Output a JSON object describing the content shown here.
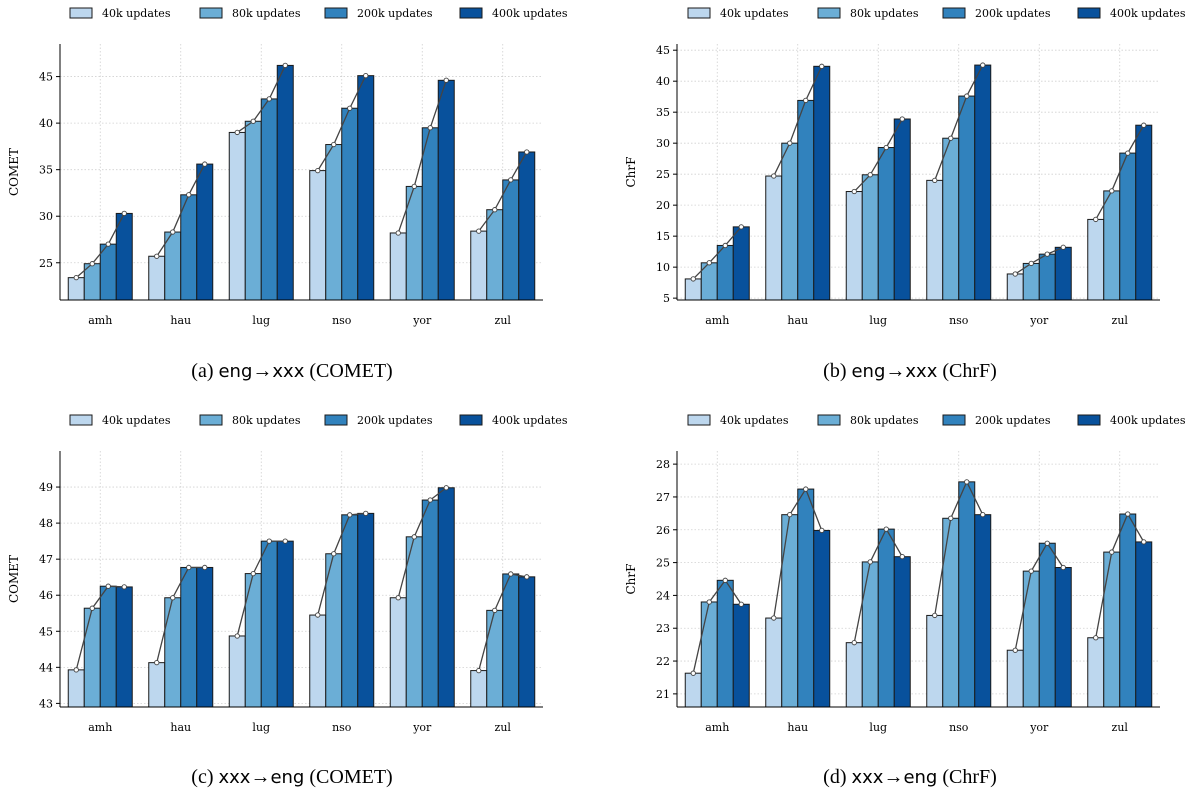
{
  "colors": [
    "#bdd7ee",
    "#6baed6",
    "#3182bd",
    "#08519c"
  ],
  "legend": [
    "40k updates",
    "80k updates",
    "200k updates",
    "400k updates"
  ],
  "chart_data": [
    {
      "type": "bar",
      "caption": "(a) eng→xxx (COMET)",
      "caption_parts": {
        "label": "(a)",
        "src": "eng",
        "arrow": "→",
        "tgt": "xxx",
        "metric": "(COMET)"
      },
      "ylabel": "COMET",
      "categories": [
        "amh",
        "hau",
        "lug",
        "nso",
        "yor",
        "zul"
      ],
      "ylim": [
        21,
        48.5
      ],
      "yticks": [
        25,
        30,
        35,
        40,
        45
      ],
      "series": [
        {
          "name": "40k updates",
          "values": [
            23.4,
            25.7,
            39.0,
            34.9,
            28.2,
            28.4
          ]
        },
        {
          "name": "80k updates",
          "values": [
            24.9,
            28.3,
            40.2,
            37.7,
            33.2,
            30.7
          ]
        },
        {
          "name": "200k updates",
          "values": [
            27.0,
            32.3,
            42.6,
            41.6,
            39.5,
            33.9
          ]
        },
        {
          "name": "400k updates",
          "values": [
            30.3,
            35.6,
            46.2,
            45.1,
            44.6,
            36.9
          ]
        }
      ]
    },
    {
      "type": "bar",
      "caption": "(b) eng→xxx (ChrF)",
      "caption_parts": {
        "label": "(b)",
        "src": "eng",
        "arrow": "→",
        "tgt": "xxx",
        "metric": "(ChrF)"
      },
      "ylabel": "ChrF",
      "categories": [
        "amh",
        "hau",
        "lug",
        "nso",
        "yor",
        "zul"
      ],
      "ylim": [
        4.7,
        46
      ],
      "yticks": [
        5,
        10,
        15,
        20,
        25,
        30,
        35,
        40,
        45
      ],
      "series": [
        {
          "name": "40k updates",
          "values": [
            8.1,
            24.7,
            22.2,
            24.0,
            8.9,
            17.7
          ]
        },
        {
          "name": "80k updates",
          "values": [
            10.7,
            30.0,
            24.9,
            30.8,
            10.6,
            22.3
          ]
        },
        {
          "name": "200k updates",
          "values": [
            13.5,
            36.9,
            29.3,
            37.6,
            12.1,
            28.4
          ]
        },
        {
          "name": "400k updates",
          "values": [
            16.5,
            42.4,
            33.9,
            42.6,
            13.2,
            32.9
          ]
        }
      ]
    },
    {
      "type": "bar",
      "caption": "(c) xxx→eng (COMET)",
      "caption_parts": {
        "label": "(c)",
        "src": "xxx",
        "arrow": "→",
        "tgt": "eng",
        "metric": "(COMET)"
      },
      "ylabel": "COMET",
      "categories": [
        "amh",
        "hau",
        "lug",
        "nso",
        "yor",
        "zul"
      ],
      "ylim": [
        42.9,
        50
      ],
      "yticks": [
        43,
        44,
        45,
        46,
        47,
        48,
        49
      ],
      "series": [
        {
          "name": "40k updates",
          "values": [
            43.93,
            44.13,
            44.87,
            45.45,
            45.93,
            43.91
          ]
        },
        {
          "name": "80k updates",
          "values": [
            45.64,
            45.93,
            46.6,
            47.15,
            47.62,
            45.58
          ]
        },
        {
          "name": "200k updates",
          "values": [
            46.25,
            46.77,
            47.5,
            48.23,
            48.64,
            46.59
          ]
        },
        {
          "name": "400k updates",
          "values": [
            46.23,
            46.77,
            47.5,
            48.27,
            48.98,
            46.51
          ]
        }
      ]
    },
    {
      "type": "bar",
      "caption": "(d) xxx→eng (ChrF)",
      "caption_parts": {
        "label": "(d)",
        "src": "xxx",
        "arrow": "→",
        "tgt": "eng",
        "metric": "(ChrF)"
      },
      "ylabel": "ChrF",
      "categories": [
        "amh",
        "hau",
        "lug",
        "nso",
        "yor",
        "zul"
      ],
      "ylim": [
        20.6,
        28.4
      ],
      "yticks": [
        21,
        22,
        23,
        24,
        25,
        26,
        27,
        28
      ],
      "series": [
        {
          "name": "40k updates",
          "values": [
            21.63,
            23.31,
            22.56,
            23.39,
            22.33,
            22.71
          ]
        },
        {
          "name": "80k updates",
          "values": [
            23.8,
            26.46,
            25.02,
            26.35,
            24.74,
            25.32
          ]
        },
        {
          "name": "200k updates",
          "values": [
            24.46,
            27.24,
            26.02,
            27.46,
            25.59,
            26.48
          ]
        },
        {
          "name": "400k updates",
          "values": [
            23.73,
            25.98,
            25.18,
            26.46,
            24.85,
            25.63
          ]
        }
      ]
    }
  ]
}
